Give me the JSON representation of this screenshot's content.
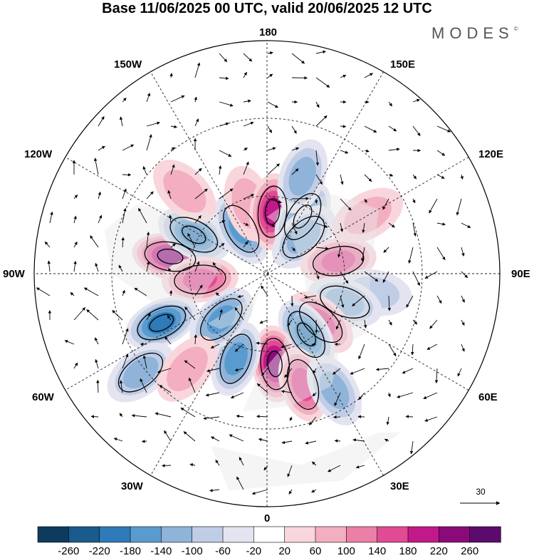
{
  "title": "Base 11/06/2025 00 UTC, valid 20/06/2025 12 UTC",
  "brand": {
    "name": "MODES",
    "mark": "©"
  },
  "longitude_labels": {
    "top": "180",
    "bottom": "0",
    "left": "90W",
    "right": "90E",
    "upper_left_1": "150W",
    "upper_left_2": "120W",
    "upper_right_1": "150E",
    "upper_right_2": "120E",
    "lower_left_1": "60W",
    "lower_left_2": "30W",
    "lower_right_1": "60E",
    "lower_right_2": "30E"
  },
  "reference_vector": {
    "value": "30"
  },
  "colorbar": {
    "labels": [
      "-260",
      "-220",
      "-180",
      "-140",
      "-100",
      "-60",
      "-20",
      "20",
      "60",
      "100",
      "140",
      "180",
      "220",
      "260"
    ],
    "colors": [
      "#0d3b5e",
      "#1a5a8c",
      "#2f7ab8",
      "#5a9bcf",
      "#8fb3d9",
      "#c0cde6",
      "#e4e4f1",
      "#ffffff",
      "#f8d6dc",
      "#f3aebf",
      "#ec7fa7",
      "#e04b93",
      "#c2198a",
      "#8b0a7a",
      "#5c0a6e"
    ]
  },
  "anomaly_centers": [
    {
      "lon": -100,
      "lat": 52,
      "value": 250
    },
    {
      "lon": -118,
      "lat": 58,
      "value": -200
    },
    {
      "lon": -85,
      "lat": 64,
      "value": 170
    },
    {
      "lon": -150,
      "lat": 70,
      "value": -150
    },
    {
      "lon": -165,
      "lat": 62,
      "value": 80
    },
    {
      "lon": 175,
      "lat": 66,
      "value": 200
    },
    {
      "lon": 148,
      "lat": 64,
      "value": -200
    },
    {
      "lon": 135,
      "lat": 70,
      "value": -120
    },
    {
      "lon": 160,
      "lat": 50,
      "value": -100
    },
    {
      "lon": 100,
      "lat": 62,
      "value": 150
    },
    {
      "lon": 80,
      "lat": 48,
      "value": -80
    },
    {
      "lon": 70,
      "lat": 58,
      "value": -130
    },
    {
      "lon": 48,
      "lat": 62,
      "value": 140
    },
    {
      "lon": 33,
      "lat": 62,
      "value": -180
    },
    {
      "lon": 5,
      "lat": 55,
      "value": 220
    },
    {
      "lon": 18,
      "lat": 45,
      "value": 140
    },
    {
      "lon": -20,
      "lat": 55,
      "value": -140
    },
    {
      "lon": -45,
      "lat": 65,
      "value": -150
    },
    {
      "lon": -65,
      "lat": 45,
      "value": -180
    },
    {
      "lon": -52,
      "lat": 28,
      "value": -120
    },
    {
      "lon": -40,
      "lat": 42,
      "value": 60
    },
    {
      "lon": 30,
      "lat": 38,
      "value": -100
    },
    {
      "lon": -135,
      "lat": 45,
      "value": 60
    },
    {
      "lon": 120,
      "lat": 45,
      "value": 60
    }
  ]
}
